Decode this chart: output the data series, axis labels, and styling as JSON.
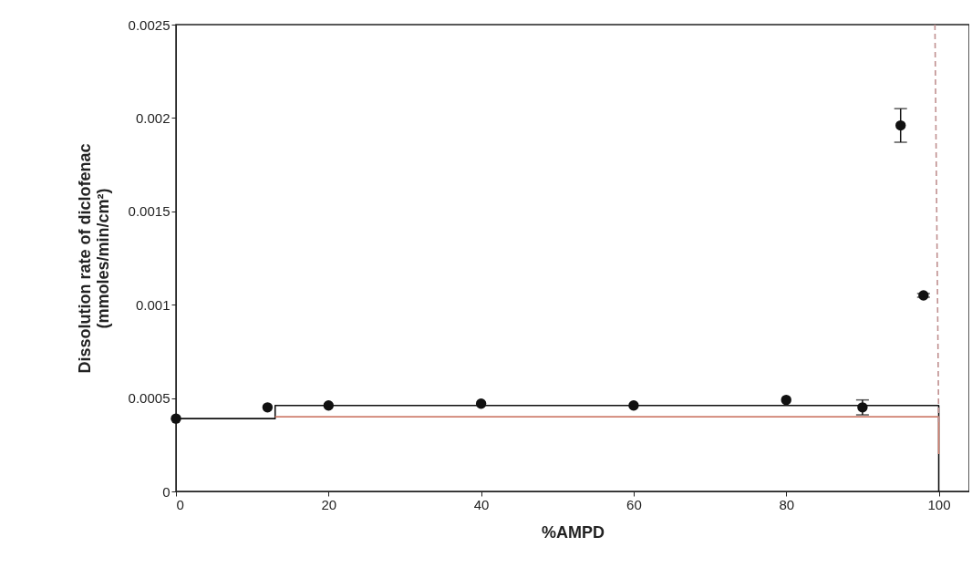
{
  "chart_data": {
    "type": "scatter",
    "xlabel": "%AMPD",
    "ylabel": [
      "Dissolution rate of diclofenac",
      "(mmoles/min/cm²)"
    ],
    "xlim": [
      0,
      104
    ],
    "xticks": [
      0,
      20,
      40,
      60,
      80,
      100
    ],
    "ylim": [
      0,
      0.0025
    ],
    "yticks": [
      0,
      0.0005,
      0.001,
      0.0015,
      0.002,
      0.0025
    ],
    "marker": "circle",
    "grid": false,
    "legend": false,
    "series": [
      {
        "color": "#111111",
        "x": [
          0,
          12,
          20,
          40,
          60,
          80,
          90,
          95,
          98
        ],
        "values": [
          0.00039,
          0.00045,
          0.00046,
          0.00047,
          0.00046,
          0.00049,
          0.00045,
          0.00196,
          0.00105
        ],
        "errors": [
          null,
          null,
          null,
          null,
          null,
          null,
          4e-05,
          9e-05,
          1e-05
        ]
      },
      {
        "type": "line",
        "color": "#111111",
        "line_style": "solid",
        "marker": "none",
        "x": [
          0,
          13,
          13,
          100,
          100
        ],
        "values": [
          0.00039,
          0.00039,
          0.00046,
          0.00046,
          0
        ]
      },
      {
        "type": "line",
        "color": "#d08070",
        "line_style": "solid",
        "marker": "none",
        "x": [
          13,
          100,
          100
        ],
        "values": [
          0.0004,
          0.0004,
          0.0002
        ]
      },
      {
        "type": "line",
        "color": "#c09090",
        "line_style": "dashed",
        "marker": "none",
        "x": [
          99.5,
          100
        ],
        "values": [
          0.0025,
          0.00035
        ]
      }
    ]
  }
}
